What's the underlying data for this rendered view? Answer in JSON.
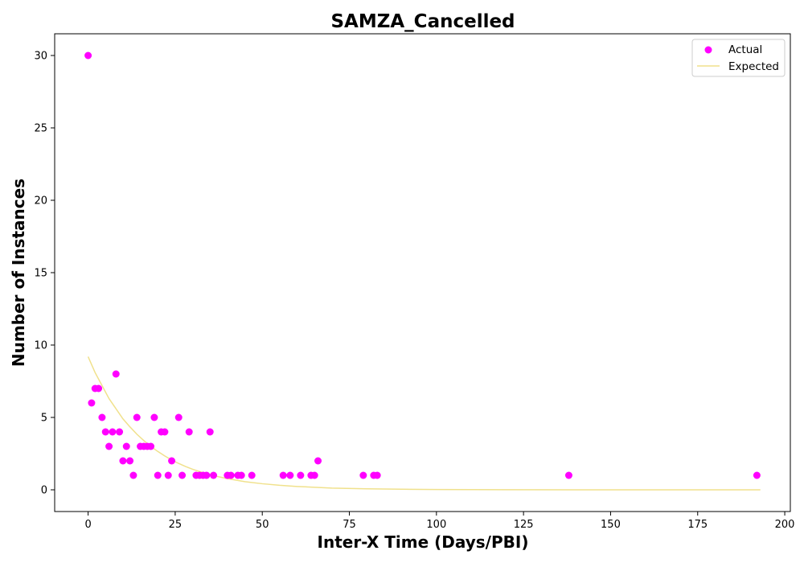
{
  "chart_data": {
    "type": "scatter",
    "title": "SAMZA_Cancelled",
    "xlabel": "Inter-X Time (Days/PBI)",
    "ylabel": "Number of Instances",
    "xlim": [
      -9.6,
      201.6
    ],
    "ylim": [
      -1.5,
      31.5
    ],
    "xticks": [
      0,
      25,
      50,
      75,
      100,
      125,
      150,
      175,
      200
    ],
    "yticks": [
      0,
      5,
      10,
      15,
      20,
      25,
      30
    ],
    "grid": false,
    "legend_position": "top-right",
    "series": [
      {
        "name": "Actual",
        "kind": "scatter",
        "color": "#ff00ff",
        "points": [
          [
            0,
            30
          ],
          [
            1,
            6
          ],
          [
            2,
            7
          ],
          [
            3,
            7
          ],
          [
            4,
            5
          ],
          [
            5,
            4
          ],
          [
            6,
            3
          ],
          [
            7,
            4
          ],
          [
            8,
            8
          ],
          [
            9,
            4
          ],
          [
            10,
            2
          ],
          [
            11,
            3
          ],
          [
            12,
            2
          ],
          [
            13,
            1
          ],
          [
            14,
            5
          ],
          [
            15,
            3
          ],
          [
            16,
            3
          ],
          [
            17,
            3
          ],
          [
            18,
            3
          ],
          [
            19,
            5
          ],
          [
            20,
            1
          ],
          [
            21,
            4
          ],
          [
            22,
            4
          ],
          [
            23,
            1
          ],
          [
            24,
            2
          ],
          [
            26,
            5
          ],
          [
            27,
            1
          ],
          [
            29,
            4
          ],
          [
            31,
            1
          ],
          [
            32,
            1
          ],
          [
            33,
            1
          ],
          [
            34,
            1
          ],
          [
            35,
            4
          ],
          [
            36,
            1
          ],
          [
            40,
            1
          ],
          [
            41,
            1
          ],
          [
            43,
            1
          ],
          [
            44,
            1
          ],
          [
            47,
            1
          ],
          [
            56,
            1
          ],
          [
            58,
            1
          ],
          [
            61,
            1
          ],
          [
            64,
            1
          ],
          [
            65,
            1
          ],
          [
            66,
            2
          ],
          [
            79,
            1
          ],
          [
            82,
            1
          ],
          [
            83,
            1
          ],
          [
            138,
            1
          ],
          [
            192,
            1
          ]
        ]
      },
      {
        "name": "Expected",
        "kind": "line",
        "color": "#f0e18c",
        "points": [
          [
            0,
            9.2
          ],
          [
            2,
            8.1
          ],
          [
            4,
            7.2
          ],
          [
            6,
            6.3
          ],
          [
            8,
            5.6
          ],
          [
            10,
            4.9
          ],
          [
            12,
            4.35
          ],
          [
            14,
            3.84
          ],
          [
            16,
            3.4
          ],
          [
            18,
            3.0
          ],
          [
            20,
            2.65
          ],
          [
            22,
            2.34
          ],
          [
            24,
            2.06
          ],
          [
            26,
            1.82
          ],
          [
            28,
            1.61
          ],
          [
            30,
            1.42
          ],
          [
            33,
            1.18
          ],
          [
            36,
            0.98
          ],
          [
            40,
            0.77
          ],
          [
            45,
            0.56
          ],
          [
            50,
            0.42
          ],
          [
            55,
            0.31
          ],
          [
            60,
            0.23
          ],
          [
            70,
            0.12
          ],
          [
            80,
            0.07
          ],
          [
            90,
            0.04
          ],
          [
            100,
            0.02
          ],
          [
            120,
            0.006
          ],
          [
            140,
            0.002
          ],
          [
            160,
            0.0005
          ],
          [
            180,
            0.0001
          ],
          [
            193,
            0.0
          ]
        ]
      }
    ]
  }
}
